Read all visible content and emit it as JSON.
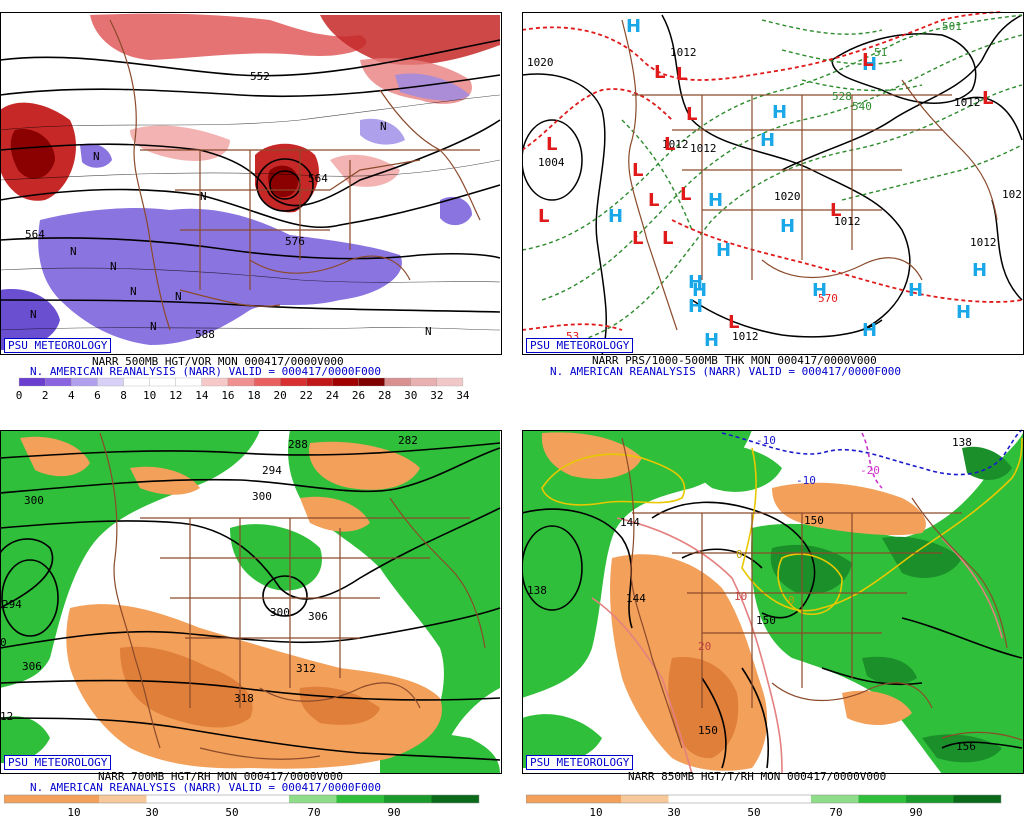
{
  "colors": {
    "brand": "#0000cc",
    "vort_pos": "#d03030",
    "vort_neg": "#7a5cd6",
    "rh_dry": "#f2a05a",
    "rh_wet": "#2fbf3a",
    "high": "#1aa7e8",
    "low": "#e01a1a",
    "thickness": "#2e8b2e",
    "coast": "#8b4a2b"
  },
  "badge": "PSU METEOROLOGY",
  "panels": [
    {
      "id": "tl",
      "title": "NARR 500MB HGT/VOR MON 000417/0000V000",
      "subtitle": "N. AMERICAN REANALYSIS (NARR) VALID = 000417/0000F000",
      "colorbar_labels": [
        "0",
        "2",
        "4",
        "6",
        "8",
        "10",
        "12",
        "14",
        "16",
        "18",
        "20",
        "22",
        "24",
        "26",
        "28",
        "30",
        "32",
        "34"
      ],
      "contour_labels": [
        "552",
        "564",
        "576",
        "564",
        "588",
        "N",
        "N",
        "N",
        "N",
        "N",
        "N",
        "N",
        "N",
        "N",
        "N"
      ]
    },
    {
      "id": "tr",
      "title": "NARR PRS/1000-500MB THK MON 000417/0000V000",
      "subtitle": "N. AMERICAN REANALYSIS (NARR) VALID = 000417/0000F000",
      "contour_labels": [
        "1020",
        "1004",
        "1012",
        "1012",
        "1012",
        "1020",
        "1012",
        "1012",
        "1012",
        "1012",
        "102",
        "528",
        "540",
        "570",
        "51",
        "53",
        "501"
      ],
      "highs_count": 17,
      "lows_count": 15
    },
    {
      "id": "bl",
      "title": "NARR 700MB HGT/RH MON 000417/0000V000",
      "subtitle": "N. AMERICAN REANALYSIS (NARR) VALID = 000417/0000F000",
      "colorbar_labels": [
        "10",
        "30",
        "50",
        "70",
        "90"
      ],
      "contour_labels": [
        "288",
        "282",
        "294",
        "300",
        "300",
        "294",
        "0",
        "306",
        "300",
        "306",
        "312",
        "318",
        "12"
      ]
    },
    {
      "id": "br",
      "title": "NARR 850MB HGT/T/RH MON 000417/0000V000",
      "subtitle": "",
      "colorbar_labels": [
        "10",
        "30",
        "50",
        "70",
        "90"
      ],
      "contour_labels": [
        "138",
        "138",
        "144",
        "144",
        "150",
        "150",
        "150",
        "156",
        "-10",
        "-10",
        "-20",
        "10",
        "20",
        "0",
        "0"
      ]
    }
  ]
}
